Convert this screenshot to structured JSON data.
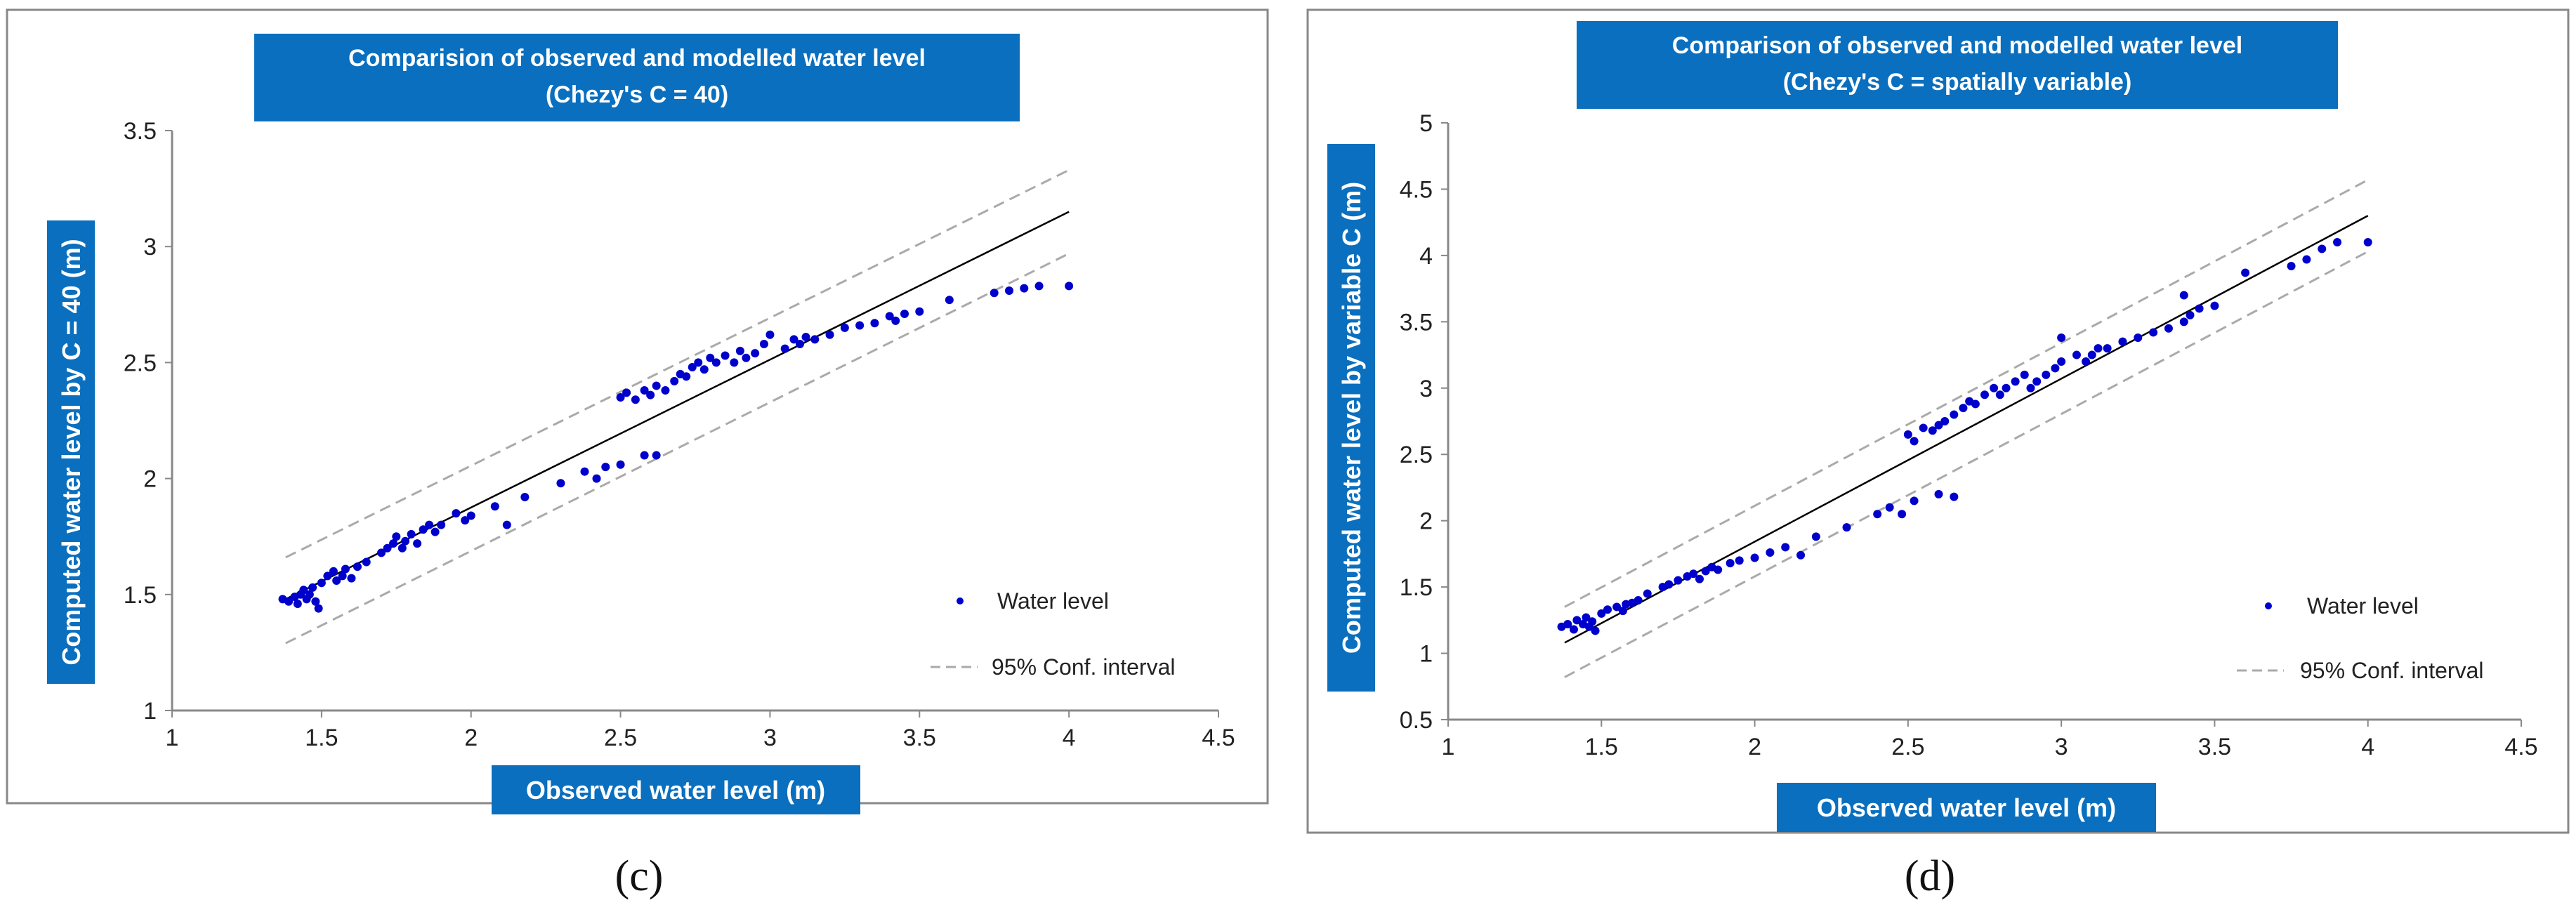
{
  "chart_data": [
    {
      "type": "scatter",
      "panel": "c",
      "title_line1": "Comparision of observed and modelled water level",
      "title_line2": "(Chezy's C = 40)",
      "xlabel": "Observed water level (m)",
      "ylabel": "Computed water level by C = 40 (m)",
      "xlim": [
        1,
        4.5
      ],
      "ylim": [
        1,
        3.5
      ],
      "x_ticks": [
        "1",
        "1.5",
        "2",
        "2.5",
        "3",
        "3.5",
        "4",
        "4.5"
      ],
      "y_ticks": [
        "1",
        "1.5",
        "2",
        "2.5",
        "3",
        "3.5"
      ],
      "legend": [
        "Water level",
        "95% Conf. interval"
      ],
      "fit_line": [
        [
          1.38,
          1.48
        ],
        [
          4.0,
          3.15
        ]
      ],
      "conf_upper": [
        [
          1.38,
          1.66
        ],
        [
          4.0,
          3.33
        ]
      ],
      "conf_lower": [
        [
          1.38,
          1.29
        ],
        [
          4.0,
          2.97
        ]
      ],
      "points": [
        [
          1.37,
          1.48
        ],
        [
          1.39,
          1.47
        ],
        [
          1.41,
          1.49
        ],
        [
          1.42,
          1.46
        ],
        [
          1.43,
          1.5
        ],
        [
          1.44,
          1.52
        ],
        [
          1.45,
          1.48
        ],
        [
          1.46,
          1.5
        ],
        [
          1.47,
          1.53
        ],
        [
          1.48,
          1.47
        ],
        [
          1.49,
          1.44
        ],
        [
          1.5,
          1.55
        ],
        [
          1.52,
          1.58
        ],
        [
          1.54,
          1.6
        ],
        [
          1.55,
          1.56
        ],
        [
          1.57,
          1.58
        ],
        [
          1.58,
          1.61
        ],
        [
          1.6,
          1.57
        ],
        [
          1.62,
          1.62
        ],
        [
          1.65,
          1.64
        ],
        [
          1.7,
          1.68
        ],
        [
          1.72,
          1.7
        ],
        [
          1.74,
          1.72
        ],
        [
          1.75,
          1.75
        ],
        [
          1.77,
          1.7
        ],
        [
          1.78,
          1.73
        ],
        [
          1.8,
          1.76
        ],
        [
          1.82,
          1.72
        ],
        [
          1.84,
          1.78
        ],
        [
          1.86,
          1.8
        ],
        [
          1.88,
          1.77
        ],
        [
          1.9,
          1.8
        ],
        [
          1.95,
          1.85
        ],
        [
          1.98,
          1.82
        ],
        [
          2.0,
          1.84
        ],
        [
          2.08,
          1.88
        ],
        [
          2.12,
          1.8
        ],
        [
          2.18,
          1.92
        ],
        [
          2.3,
          1.98
        ],
        [
          2.38,
          2.03
        ],
        [
          2.42,
          2.0
        ],
        [
          2.45,
          2.05
        ],
        [
          2.5,
          2.06
        ],
        [
          2.58,
          2.1
        ],
        [
          2.62,
          2.1
        ],
        [
          2.5,
          2.35
        ],
        [
          2.52,
          2.37
        ],
        [
          2.55,
          2.34
        ],
        [
          2.58,
          2.38
        ],
        [
          2.6,
          2.36
        ],
        [
          2.62,
          2.4
        ],
        [
          2.65,
          2.38
        ],
        [
          2.68,
          2.42
        ],
        [
          2.7,
          2.45
        ],
        [
          2.72,
          2.44
        ],
        [
          2.74,
          2.48
        ],
        [
          2.76,
          2.5
        ],
        [
          2.78,
          2.47
        ],
        [
          2.8,
          2.52
        ],
        [
          2.82,
          2.5
        ],
        [
          2.85,
          2.53
        ],
        [
          2.88,
          2.5
        ],
        [
          2.9,
          2.55
        ],
        [
          2.92,
          2.52
        ],
        [
          2.95,
          2.54
        ],
        [
          2.98,
          2.58
        ],
        [
          3.0,
          2.62
        ],
        [
          3.05,
          2.56
        ],
        [
          3.08,
          2.6
        ],
        [
          3.1,
          2.58
        ],
        [
          3.12,
          2.61
        ],
        [
          3.15,
          2.6
        ],
        [
          3.2,
          2.62
        ],
        [
          3.25,
          2.65
        ],
        [
          3.3,
          2.66
        ],
        [
          3.35,
          2.67
        ],
        [
          3.4,
          2.7
        ],
        [
          3.42,
          2.68
        ],
        [
          3.45,
          2.71
        ],
        [
          3.5,
          2.72
        ],
        [
          3.6,
          2.77
        ],
        [
          3.75,
          2.8
        ],
        [
          3.8,
          2.81
        ],
        [
          3.85,
          2.82
        ],
        [
          3.9,
          2.83
        ],
        [
          4.0,
          2.83
        ]
      ]
    },
    {
      "type": "scatter",
      "panel": "d",
      "title_line1": "Comparison of observed and modelled water level",
      "title_line2": "(Chezy's C = spatially variable)",
      "xlabel": "Observed water level (m)",
      "ylabel": "Computed water level by variable C (m)",
      "xlim": [
        1,
        4.5
      ],
      "ylim": [
        0.5,
        5
      ],
      "x_ticks": [
        "1",
        "1.5",
        "2",
        "2.5",
        "3",
        "3.5",
        "4",
        "4.5"
      ],
      "y_ticks": [
        "0.5",
        "1",
        "1.5",
        "2",
        "2.5",
        "3",
        "3.5",
        "4",
        "4.5",
        "5"
      ],
      "legend": [
        "Water level",
        "95% Conf. interval"
      ],
      "fit_line": [
        [
          1.38,
          1.08
        ],
        [
          4.0,
          4.3
        ]
      ],
      "conf_upper": [
        [
          1.38,
          1.35
        ],
        [
          4.0,
          4.57
        ]
      ],
      "conf_lower": [
        [
          1.38,
          0.82
        ],
        [
          4.0,
          4.03
        ]
      ],
      "points": [
        [
          1.37,
          1.2
        ],
        [
          1.39,
          1.22
        ],
        [
          1.41,
          1.18
        ],
        [
          1.42,
          1.25
        ],
        [
          1.44,
          1.22
        ],
        [
          1.45,
          1.27
        ],
        [
          1.46,
          1.2
        ],
        [
          1.47,
          1.24
        ],
        [
          1.48,
          1.17
        ],
        [
          1.5,
          1.3
        ],
        [
          1.52,
          1.33
        ],
        [
          1.55,
          1.35
        ],
        [
          1.57,
          1.32
        ],
        [
          1.58,
          1.37
        ],
        [
          1.6,
          1.38
        ],
        [
          1.62,
          1.4
        ],
        [
          1.65,
          1.45
        ],
        [
          1.7,
          1.5
        ],
        [
          1.72,
          1.52
        ],
        [
          1.75,
          1.55
        ],
        [
          1.78,
          1.58
        ],
        [
          1.8,
          1.6
        ],
        [
          1.82,
          1.56
        ],
        [
          1.84,
          1.62
        ],
        [
          1.86,
          1.65
        ],
        [
          1.88,
          1.63
        ],
        [
          1.92,
          1.68
        ],
        [
          1.95,
          1.7
        ],
        [
          2.0,
          1.72
        ],
        [
          2.05,
          1.76
        ],
        [
          2.1,
          1.8
        ],
        [
          2.15,
          1.74
        ],
        [
          2.2,
          1.88
        ],
        [
          2.3,
          1.95
        ],
        [
          2.4,
          2.05
        ],
        [
          2.44,
          2.1
        ],
        [
          2.48,
          2.05
        ],
        [
          2.52,
          2.15
        ],
        [
          2.6,
          2.2
        ],
        [
          2.65,
          2.18
        ],
        [
          2.5,
          2.65
        ],
        [
          2.52,
          2.6
        ],
        [
          2.55,
          2.7
        ],
        [
          2.58,
          2.68
        ],
        [
          2.6,
          2.72
        ],
        [
          2.62,
          2.75
        ],
        [
          2.65,
          2.8
        ],
        [
          2.68,
          2.85
        ],
        [
          2.7,
          2.9
        ],
        [
          2.72,
          2.88
        ],
        [
          2.75,
          2.95
        ],
        [
          2.78,
          3.0
        ],
        [
          2.8,
          2.95
        ],
        [
          2.82,
          3.0
        ],
        [
          2.85,
          3.05
        ],
        [
          2.88,
          3.1
        ],
        [
          2.9,
          3.0
        ],
        [
          2.92,
          3.05
        ],
        [
          2.95,
          3.1
        ],
        [
          2.98,
          3.15
        ],
        [
          3.0,
          3.2
        ],
        [
          3.0,
          3.38
        ],
        [
          3.05,
          3.25
        ],
        [
          3.08,
          3.2
        ],
        [
          3.1,
          3.25
        ],
        [
          3.12,
          3.3
        ],
        [
          3.15,
          3.3
        ],
        [
          3.2,
          3.35
        ],
        [
          3.25,
          3.38
        ],
        [
          3.3,
          3.42
        ],
        [
          3.35,
          3.45
        ],
        [
          3.4,
          3.5
        ],
        [
          3.4,
          3.7
        ],
        [
          3.42,
          3.55
        ],
        [
          3.45,
          3.6
        ],
        [
          3.5,
          3.62
        ],
        [
          3.6,
          3.87
        ],
        [
          3.75,
          3.92
        ],
        [
          3.8,
          3.97
        ],
        [
          3.85,
          4.05
        ],
        [
          3.9,
          4.1
        ],
        [
          4.0,
          4.1
        ]
      ]
    }
  ],
  "panel_labels": [
    "(c)",
    "(d)"
  ],
  "colors": {
    "point": "#0000cc",
    "title_bg": "#0a6fbe",
    "conf_line": "#aaaaaa",
    "fit_line": "#000000",
    "frame": "#888888"
  }
}
